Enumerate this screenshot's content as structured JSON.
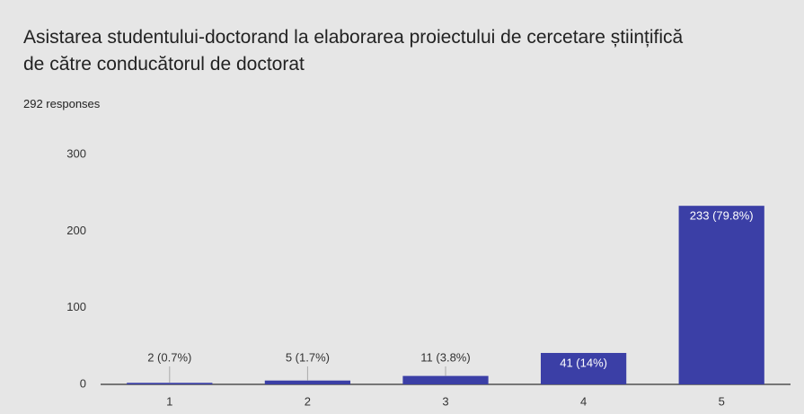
{
  "chart_data": {
    "type": "bar",
    "title": "Asistarea studentului-doctorand la elaborarea proiectului de cercetare științifică de către conducătorul de doctorat",
    "subtitle": "292 responses",
    "categories": [
      "1",
      "2",
      "3",
      "4",
      "5"
    ],
    "values": [
      2,
      5,
      11,
      41,
      233
    ],
    "value_labels": [
      "2 (0.7%)",
      "5 (1.7%)",
      "11 (3.8%)",
      "41 (14%)",
      "233 (79.8%)"
    ],
    "color": "#3b3fa6",
    "ylim": [
      0,
      300
    ],
    "yticks": [
      0,
      100,
      200,
      300
    ],
    "grid": false
  }
}
